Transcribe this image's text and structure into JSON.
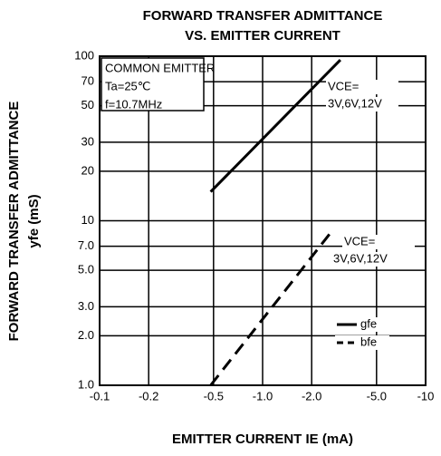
{
  "chart_data": {
    "type": "line",
    "title": [
      "FORWARD TRANSFER ADMITTANCE",
      "VS. EMITTER CURRENT"
    ],
    "x_label": "EMITTER CURRENT  IE (mA)",
    "y_label": [
      "FORWARD TRANSFER ADMITTANCE",
      "yfe (mS)"
    ],
    "xscale": "log",
    "yscale": "log",
    "grid": true,
    "legend": "lower right",
    "xlim": [
      -0.1,
      -10
    ],
    "ylim": [
      1.0,
      100
    ],
    "xticks": [
      -0.1,
      -0.2,
      -0.5,
      {
        "value": -1,
        "label": "-1.0"
      },
      {
        "value": -2,
        "label": "-2.0"
      },
      {
        "value": -5,
        "label": "-5.0"
      },
      -10
    ],
    "yticks": [
      {
        "value": 1,
        "label": "1.0"
      },
      {
        "value": 2,
        "label": "2.0"
      },
      {
        "value": 3,
        "label": "3.0"
      },
      {
        "value": 5,
        "label": "5.0"
      },
      {
        "value": 7,
        "label": "7.0"
      },
      10,
      20,
      30,
      50,
      70,
      100
    ],
    "annotations": [
      "COMMON EMITTER",
      "Ta=25℃",
      "f=10.7MHz",
      "VCE=",
      "3V,6V,12V",
      "VCE=",
      "3V,6V,12V"
    ],
    "series": [
      {
        "name": "gfe",
        "color": "#000000",
        "linestyle": "solid",
        "x": [
          -0.48,
          -3.0
        ],
        "values": [
          15,
          95
        ]
      },
      {
        "name": "bfe",
        "color": "#000000",
        "linestyle": "dashed",
        "x": [
          -0.48,
          -2.6
        ],
        "values": [
          1.0,
          8.4
        ]
      }
    ]
  }
}
